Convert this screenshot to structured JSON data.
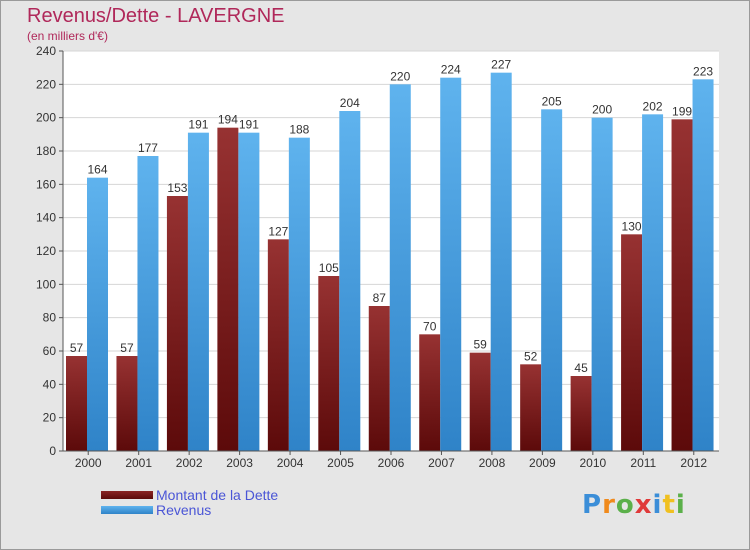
{
  "title": "Revenus/Dette - LAVERGNE",
  "subtitle": "(en milliers d'€)",
  "logo_text": "Proxiti",
  "chart_data": {
    "type": "bar",
    "title": "Revenus/Dette - LAVERGNE",
    "subtitle": "(en milliers d'€)",
    "categories": [
      "2000",
      "2001",
      "2002",
      "2003",
      "2004",
      "2005",
      "2006",
      "2007",
      "2008",
      "2009",
      "2010",
      "2011",
      "2012"
    ],
    "series": [
      {
        "name": "Montant de la Dette",
        "color": "#7a1a1a",
        "values": [
          57,
          57,
          153,
          194,
          127,
          105,
          87,
          70,
          59,
          52,
          45,
          130,
          199
        ]
      },
      {
        "name": "Revenus",
        "color": "#4aa3e6",
        "values": [
          164,
          177,
          191,
          191,
          188,
          204,
          220,
          224,
          227,
          205,
          200,
          202,
          223
        ]
      }
    ],
    "ylim": [
      0,
      240
    ],
    "yticks": [
      0,
      20,
      40,
      60,
      80,
      100,
      120,
      140,
      160,
      180,
      200,
      220,
      240
    ],
    "grid": true,
    "legend_position": "bottom-left"
  }
}
